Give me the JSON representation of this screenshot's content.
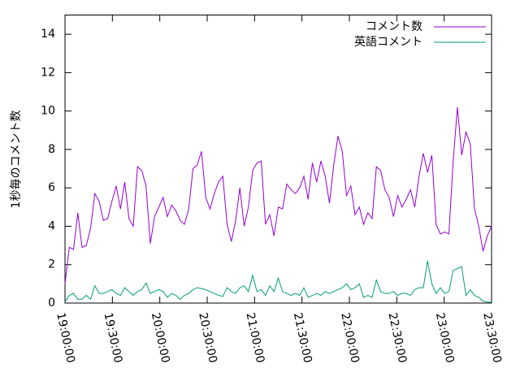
{
  "chart_data": {
    "type": "line",
    "y_label": "1秒毎のコメント数",
    "legend": "top-right",
    "x": [
      "19:00:00",
      "19:02:42",
      "19:05:24",
      "19:08:06",
      "19:10:48",
      "19:13:30",
      "19:16:12",
      "19:18:54",
      "19:21:36",
      "19:24:18",
      "19:27:00",
      "19:29:42",
      "19:32:24",
      "19:35:06",
      "19:37:48",
      "19:40:30",
      "19:43:12",
      "19:45:54",
      "19:48:36",
      "19:51:18",
      "19:54:00",
      "19:56:42",
      "19:59:24",
      "20:02:06",
      "20:04:48",
      "20:07:30",
      "20:10:12",
      "20:12:54",
      "20:15:36",
      "20:18:18",
      "20:21:00",
      "20:23:42",
      "20:26:24",
      "20:29:06",
      "20:31:48",
      "20:34:30",
      "20:37:12",
      "20:39:54",
      "20:42:36",
      "20:45:18",
      "20:48:00",
      "20:50:42",
      "20:53:24",
      "20:56:06",
      "20:58:48",
      "21:01:30",
      "21:04:12",
      "21:06:54",
      "21:09:36",
      "21:12:18",
      "21:15:00",
      "21:17:42",
      "21:20:24",
      "21:23:06",
      "21:25:48",
      "21:28:30",
      "21:31:12",
      "21:33:54",
      "21:36:36",
      "21:39:18",
      "21:42:00",
      "21:44:42",
      "21:47:24",
      "21:50:06",
      "21:52:48",
      "21:55:30",
      "21:58:12",
      "22:00:54",
      "22:03:36",
      "22:06:18",
      "22:09:00",
      "22:11:42",
      "22:14:24",
      "22:17:06",
      "22:19:48",
      "22:22:30",
      "22:25:12",
      "22:27:54",
      "22:30:36",
      "22:33:18",
      "22:36:00",
      "22:38:42",
      "22:41:24",
      "22:44:06",
      "22:46:48",
      "22:49:30",
      "22:52:12",
      "22:54:54",
      "22:57:36",
      "23:00:18",
      "23:03:00",
      "23:05:42",
      "23:08:24",
      "23:11:06",
      "23:13:48",
      "23:16:30",
      "23:19:12",
      "23:21:54",
      "23:24:36",
      "23:27:18",
      "23:30:00"
    ],
    "series": [
      {
        "name": "コメント数",
        "color": "#9400d3",
        "values": [
          1.0,
          2.9,
          2.8,
          4.7,
          2.9,
          3.0,
          3.9,
          5.7,
          5.3,
          4.3,
          4.4,
          5.3,
          6.1,
          4.9,
          6.3,
          4.4,
          4.0,
          7.1,
          6.9,
          6.1,
          3.1,
          4.5,
          5.0,
          5.5,
          4.5,
          5.1,
          4.8,
          4.3,
          4.1,
          4.9,
          7.0,
          7.2,
          7.9,
          5.5,
          4.9,
          5.7,
          6.3,
          6.6,
          4.1,
          3.2,
          4.3,
          6.0,
          4.0,
          5.0,
          6.9,
          7.3,
          7.4,
          4.1,
          4.6,
          3.5,
          5.0,
          4.9,
          6.2,
          5.9,
          5.7,
          6.0,
          6.6,
          5.4,
          7.3,
          6.3,
          7.4,
          6.6,
          5.2,
          7.2,
          8.7,
          7.9,
          5.6,
          6.1,
          4.6,
          5.0,
          4.1,
          4.7,
          4.4,
          7.1,
          6.9,
          5.9,
          5.5,
          4.5,
          5.6,
          5.0,
          5.4,
          5.9,
          5.0,
          6.6,
          7.8,
          6.8,
          7.7,
          4.1,
          3.6,
          3.7,
          3.6,
          7.4,
          10.2,
          7.7,
          8.9,
          8.3,
          4.9,
          4.0,
          2.7,
          3.5,
          4.0
        ]
      },
      {
        "name": "英語コメント",
        "color": "#009e73",
        "values": [
          0.05,
          0.4,
          0.5,
          0.2,
          0.2,
          0.4,
          0.2,
          0.9,
          0.5,
          0.5,
          0.6,
          0.7,
          0.5,
          0.4,
          0.8,
          0.6,
          0.4,
          0.6,
          0.7,
          1.05,
          0.5,
          0.6,
          0.7,
          0.6,
          0.3,
          0.5,
          0.4,
          0.2,
          0.4,
          0.5,
          0.7,
          0.8,
          0.75,
          0.7,
          0.6,
          0.5,
          0.4,
          0.35,
          0.8,
          0.6,
          0.5,
          0.8,
          0.9,
          0.6,
          1.45,
          0.6,
          0.7,
          0.4,
          0.9,
          0.6,
          1.3,
          0.6,
          0.5,
          0.4,
          0.5,
          0.4,
          0.8,
          0.3,
          0.4,
          0.5,
          0.4,
          0.6,
          0.5,
          0.6,
          0.7,
          0.8,
          1.0,
          0.7,
          0.8,
          1.0,
          0.3,
          0.4,
          0.3,
          1.2,
          0.6,
          0.5,
          0.5,
          0.6,
          0.4,
          0.5,
          0.5,
          0.4,
          0.7,
          0.8,
          0.8,
          2.2,
          1.0,
          0.5,
          0.8,
          0.5,
          0.6,
          1.7,
          1.8,
          1.9,
          0.4,
          0.7,
          0.4,
          0.3,
          0.1,
          0.05,
          0.05
        ]
      }
    ],
    "xlim": [
      "19:00:00",
      "23:30:00"
    ],
    "xticks": [
      "19:00:00",
      "19:30:00",
      "20:00:00",
      "20:30:00",
      "21:00:00",
      "21:30:00",
      "22:00:00",
      "22:30:00",
      "23:00:00",
      "23:30:00"
    ],
    "ylim": [
      0,
      15
    ],
    "yticks": [
      0,
      2,
      4,
      6,
      8,
      10,
      12,
      14
    ],
    "grid": false
  }
}
